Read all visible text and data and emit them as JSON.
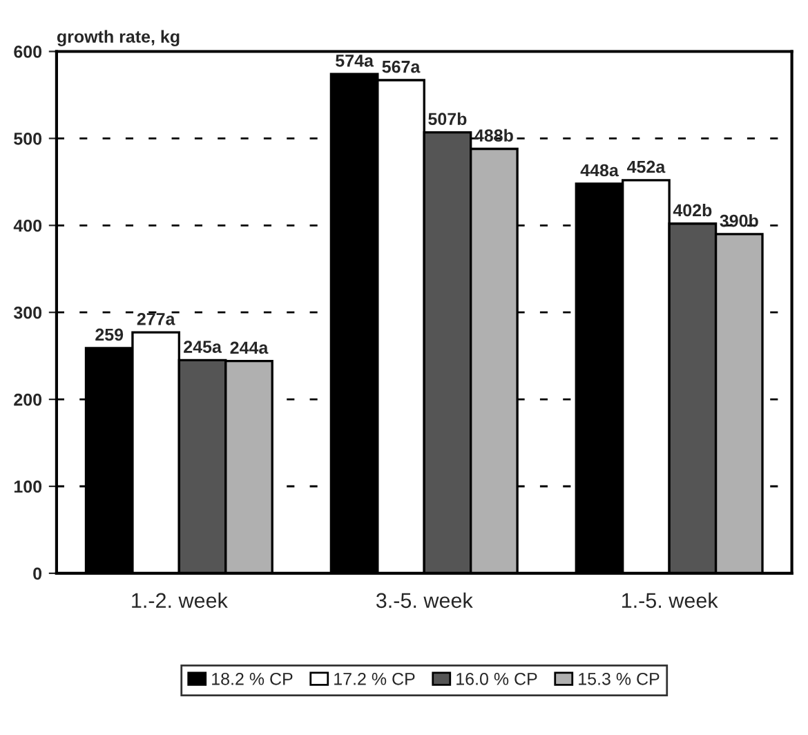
{
  "chart_data": {
    "type": "bar",
    "ylabel": "growth rate, kg",
    "categories": [
      "1.-2. week",
      "3.-5. week",
      "1.-5. week"
    ],
    "series": [
      {
        "name": "18.2 % CP",
        "color": "#000000",
        "values": [
          259,
          574,
          448
        ],
        "value_labels": [
          "259",
          "574a",
          "448a"
        ]
      },
      {
        "name": "17.2 % CP",
        "color": "#ffffff",
        "values": [
          277,
          567,
          452
        ],
        "value_labels": [
          "277a",
          "567a",
          "452a"
        ]
      },
      {
        "name": "16.0 % CP",
        "color": "#555555",
        "values": [
          245,
          507,
          402
        ],
        "value_labels": [
          "245a",
          "507b",
          "402b"
        ]
      },
      {
        "name": "15.3 % CP",
        "color": "#b0b0b0",
        "values": [
          244,
          488,
          390
        ],
        "value_labels": [
          "244a",
          "488b",
          "390b"
        ]
      }
    ],
    "ylim": [
      0,
      600
    ],
    "yticks": [
      0,
      100,
      200,
      300,
      400,
      500,
      600
    ],
    "grid": "y",
    "legend": "bottom"
  }
}
